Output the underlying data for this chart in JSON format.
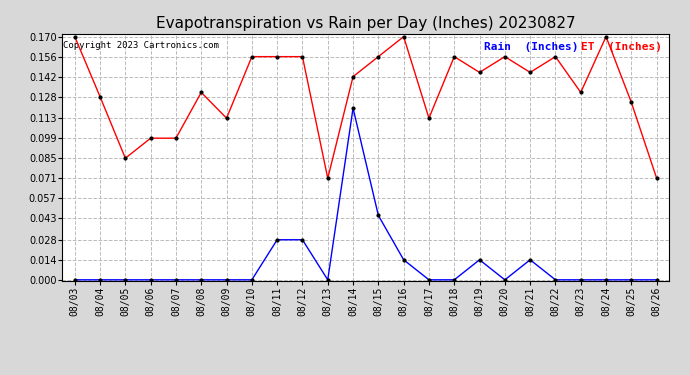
{
  "title": "Evapotranspiration vs Rain per Day (Inches) 20230827",
  "copyright": "Copyright 2023 Cartronics.com",
  "legend_rain": "Rain  (Inches)",
  "legend_et": "ET  (Inches)",
  "x_labels": [
    "08/03",
    "08/04",
    "08/05",
    "08/06",
    "08/07",
    "08/08",
    "08/09",
    "08/10",
    "08/11",
    "08/12",
    "08/13",
    "08/14",
    "08/15",
    "08/16",
    "08/17",
    "08/18",
    "08/19",
    "08/20",
    "08/21",
    "08/22",
    "08/23",
    "08/24",
    "08/25",
    "08/26"
  ],
  "et_values": [
    0.17,
    0.128,
    0.085,
    0.099,
    0.099,
    0.131,
    0.113,
    0.156,
    0.156,
    0.156,
    0.071,
    0.142,
    0.156,
    0.17,
    0.113,
    0.156,
    0.145,
    0.156,
    0.145,
    0.156,
    0.131,
    0.17,
    0.124,
    0.071
  ],
  "rain_values": [
    0.0,
    0.0,
    0.0,
    0.0,
    0.0,
    0.0,
    0.0,
    0.0,
    0.028,
    0.028,
    0.0,
    0.12,
    0.045,
    0.014,
    0.0,
    0.0,
    0.014,
    0.0,
    0.014,
    0.0,
    0.0,
    0.0,
    0.0,
    0.0
  ],
  "et_color": "red",
  "rain_color": "blue",
  "background_color": "#d8d8d8",
  "plot_bg_color": "#ffffff",
  "ylim_min": 0.0,
  "ylim_max": 0.17,
  "yticks": [
    0.0,
    0.014,
    0.028,
    0.043,
    0.057,
    0.071,
    0.085,
    0.099,
    0.113,
    0.128,
    0.142,
    0.156,
    0.17
  ],
  "grid_color": "#bbbbbb",
  "grid_style": "--",
  "title_fontsize": 11,
  "tick_fontsize": 7,
  "legend_fontsize": 8,
  "copyright_fontsize": 6.5
}
